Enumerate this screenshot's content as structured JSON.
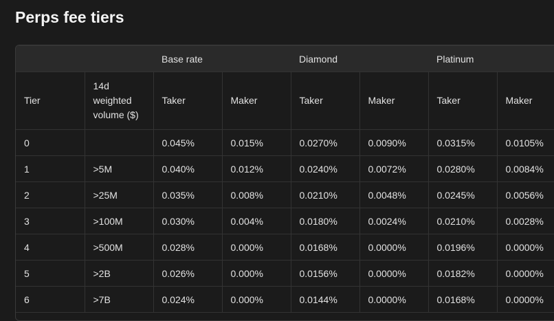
{
  "header": {
    "title": "Perps fee tiers"
  },
  "table": {
    "group_headers": [
      "Base rate",
      "Diamond",
      "Platinum"
    ],
    "columns": [
      "Tier",
      "14d weighted volume ($)",
      "Taker",
      "Maker",
      "Taker",
      "Maker",
      "Taker",
      "Maker"
    ],
    "rows": [
      [
        "0",
        null,
        "0.045%",
        "0.015%",
        "0.0270%",
        "0.0090%",
        "0.0315%",
        "0.0105%"
      ],
      [
        "1",
        ">5M",
        "0.040%",
        "0.012%",
        "0.0240%",
        "0.0072%",
        "0.0280%",
        "0.0084%"
      ],
      [
        "2",
        ">25M",
        "0.035%",
        "0.008%",
        "0.0210%",
        "0.0048%",
        "0.0245%",
        "0.0056%"
      ],
      [
        "3",
        ">100M",
        "0.030%",
        "0.004%",
        "0.0180%",
        "0.0024%",
        "0.0210%",
        "0.0028%"
      ],
      [
        "4",
        ">500M",
        "0.028%",
        "0.000%",
        "0.0168%",
        "0.0000%",
        "0.0196%",
        "0.0000%"
      ],
      [
        "5",
        ">2B",
        "0.026%",
        "0.000%",
        "0.0156%",
        "0.0000%",
        "0.0182%",
        "0.0000%"
      ],
      [
        "6",
        ">7B",
        "0.024%",
        "0.000%",
        "0.0144%",
        "0.0000%",
        "0.0168%",
        "0.0000%"
      ]
    ]
  }
}
